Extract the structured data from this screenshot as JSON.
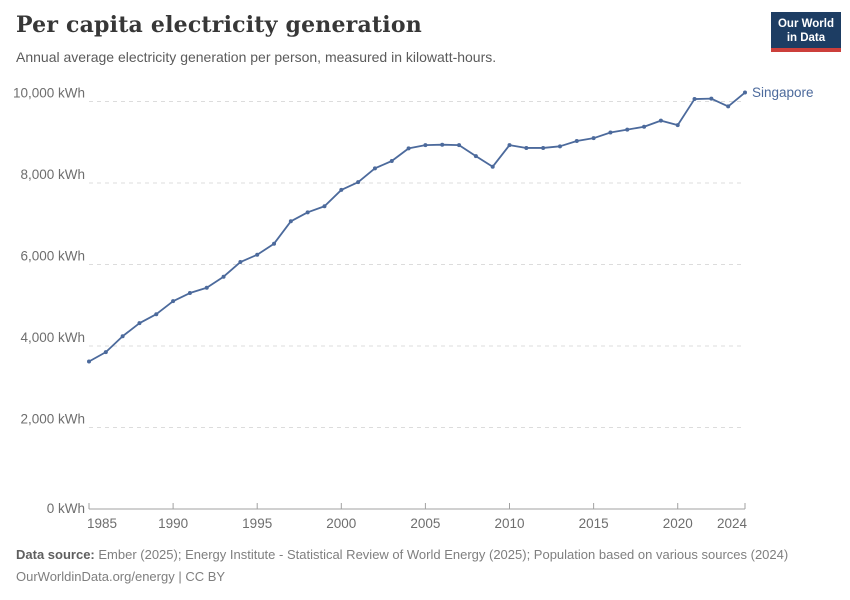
{
  "header": {
    "title": "Per capita electricity generation",
    "subtitle": "Annual average electricity generation per person, measured in kilowatt-hours."
  },
  "logo": {
    "line1": "Our World",
    "line2": "in Data",
    "bg_color": "#1d3d63",
    "stripe_color": "#cc3f3b"
  },
  "chart_data": {
    "type": "line",
    "title": "Per capita electricity generation",
    "subtitle": "Annual average electricity generation per person, measured in kilowatt-hours.",
    "xlabel": "",
    "ylabel": "",
    "xlim": [
      1985,
      2024
    ],
    "ylim": [
      0,
      10000
    ],
    "grid": "horizontal-dashed",
    "legend_position": "end-of-line",
    "x_ticks": [
      1985,
      1990,
      1995,
      2000,
      2005,
      2010,
      2015,
      2020,
      2024
    ],
    "y_ticks": [
      0,
      2000,
      4000,
      6000,
      8000,
      10000
    ],
    "y_tick_suffix": " kWh",
    "years": [
      1985,
      1986,
      1987,
      1988,
      1989,
      1990,
      1991,
      1992,
      1993,
      1994,
      1995,
      1996,
      1997,
      1998,
      1999,
      2000,
      2001,
      2002,
      2003,
      2004,
      2005,
      2006,
      2007,
      2008,
      2009,
      2010,
      2011,
      2012,
      2013,
      2014,
      2015,
      2016,
      2017,
      2018,
      2019,
      2020,
      2021,
      2022,
      2023,
      2024
    ],
    "series": [
      {
        "name": "Singapore",
        "color": "#4c6a9c",
        "values": [
          3620,
          3850,
          4240,
          4560,
          4780,
          5100,
          5300,
          5430,
          5700,
          6060,
          6240,
          6510,
          7060,
          7280,
          7430,
          7830,
          8020,
          8360,
          8540,
          8850,
          8930,
          8940,
          8930,
          8660,
          8400,
          8930,
          8860,
          8860,
          8900,
          9030,
          9100,
          9240,
          9310,
          9380,
          9530,
          9420,
          10060,
          10070,
          9880,
          10220
        ]
      }
    ]
  },
  "footer": {
    "source_label": "Data source:",
    "sources": " Ember (2025); Energy Institute - Statistical Review of World Energy (2025); Population based on various sources (2024)",
    "attribution": "OurWorldinData.org/energy | CC BY"
  }
}
